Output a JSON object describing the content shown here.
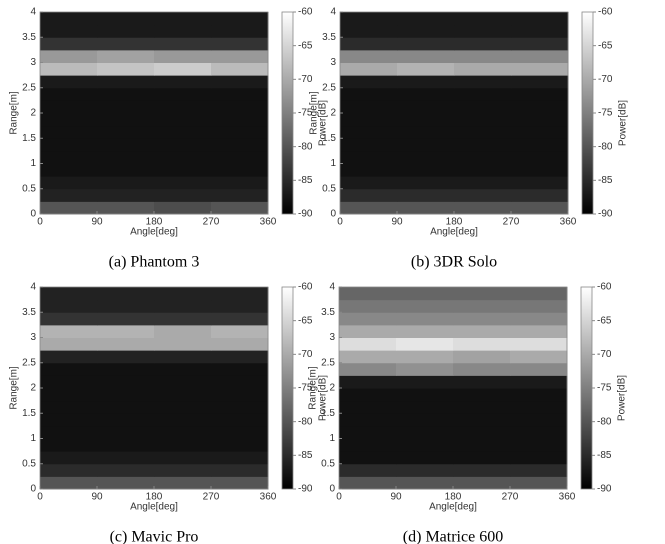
{
  "chart_data": [
    {
      "type": "heatmap",
      "caption": "(a) Phantom 3",
      "xlabel": "Angle[deg]",
      "ylabel": "Range[m]",
      "colorbar_label": "Power[dB]",
      "xlim": [
        0,
        360
      ],
      "ylim": [
        0,
        4
      ],
      "xticks": [
        0,
        90,
        180,
        270,
        360
      ],
      "yticks": [
        0,
        0.5,
        1,
        1.5,
        2,
        2.5,
        3,
        3.5,
        4
      ],
      "zlim": [
        -90,
        -60
      ],
      "zticks": [
        -60,
        -65,
        -70,
        -75,
        -80,
        -85,
        -90
      ],
      "colormap": [
        "#000000",
        "#ffffff"
      ],
      "z": [
        [
          -80,
          -80,
          -81,
          -80
        ],
        [
          -86,
          -86,
          -86,
          -86
        ],
        [
          -87,
          -87,
          -87,
          -87
        ],
        [
          -88,
          -88,
          -88,
          -88
        ],
        [
          -88,
          -88,
          -88,
          -88
        ],
        [
          -88,
          -88,
          -88,
          -88
        ],
        [
          -88,
          -88,
          -88,
          -88
        ],
        [
          -88,
          -88,
          -88,
          -88
        ],
        [
          -88,
          -88,
          -88,
          -88
        ],
        [
          -88,
          -88,
          -88,
          -88
        ],
        [
          -87,
          -87,
          -87,
          -87
        ],
        [
          -68,
          -67,
          -66,
          -68
        ],
        [
          -72,
          -71,
          -72,
          -72
        ],
        [
          -84,
          -84,
          -84,
          -84
        ],
        [
          -87,
          -87,
          -87,
          -87
        ],
        [
          -87,
          -87,
          -87,
          -87
        ]
      ]
    },
    {
      "type": "heatmap",
      "caption": "(b) 3DR Solo",
      "xlabel": "Angle[deg]",
      "ylabel": "Range[m]",
      "colorbar_label": "Power[dB]",
      "xlim": [
        0,
        360
      ],
      "ylim": [
        0,
        4
      ],
      "xticks": [
        0,
        90,
        180,
        270,
        360
      ],
      "yticks": [
        0,
        0.5,
        1,
        1.5,
        2,
        2.5,
        3,
        3.5,
        4
      ],
      "zlim": [
        -90,
        -60
      ],
      "zticks": [
        -60,
        -65,
        -70,
        -75,
        -80,
        -85,
        -90
      ],
      "colormap": [
        "#000000",
        "#ffffff"
      ],
      "z": [
        [
          -80,
          -80,
          -80,
          -80
        ],
        [
          -85,
          -85,
          -85,
          -85
        ],
        [
          -87,
          -87,
          -87,
          -87
        ],
        [
          -88,
          -88,
          -88,
          -88
        ],
        [
          -88,
          -88,
          -88,
          -88
        ],
        [
          -88,
          -88,
          -88,
          -88
        ],
        [
          -88,
          -88,
          -88,
          -88
        ],
        [
          -88,
          -88,
          -88,
          -88
        ],
        [
          -88,
          -88,
          -88,
          -88
        ],
        [
          -88,
          -88,
          -88,
          -88
        ],
        [
          -87,
          -87,
          -87,
          -87
        ],
        [
          -70,
          -69,
          -70,
          -70
        ],
        [
          -74,
          -74,
          -74,
          -74
        ],
        [
          -85,
          -85,
          -85,
          -85
        ],
        [
          -87,
          -87,
          -87,
          -87
        ],
        [
          -87,
          -87,
          -87,
          -87
        ]
      ]
    },
    {
      "type": "heatmap",
      "caption": "(c) Mavic Pro",
      "xlabel": "Angle[deg]",
      "ylabel": "Range[m]",
      "colorbar_label": "Power[dB]",
      "xlim": [
        0,
        360
      ],
      "ylim": [
        0,
        4
      ],
      "xticks": [
        0,
        90,
        180,
        270,
        360
      ],
      "yticks": [
        0,
        0.5,
        1,
        1.5,
        2,
        2.5,
        3,
        3.5,
        4
      ],
      "zlim": [
        -90,
        -60
      ],
      "zticks": [
        -60,
        -65,
        -70,
        -75,
        -80,
        -85,
        -90
      ],
      "colormap": [
        "#000000",
        "#ffffff"
      ],
      "z": [
        [
          -80,
          -80,
          -80,
          -80
        ],
        [
          -85,
          -85,
          -85,
          -85
        ],
        [
          -87,
          -87,
          -87,
          -87
        ],
        [
          -88,
          -88,
          -88,
          -88
        ],
        [
          -88,
          -88,
          -88,
          -88
        ],
        [
          -88,
          -88,
          -88,
          -88
        ],
        [
          -88,
          -88,
          -88,
          -88
        ],
        [
          -88,
          -88,
          -88,
          -88
        ],
        [
          -88,
          -88,
          -88,
          -88
        ],
        [
          -88,
          -88,
          -88,
          -88
        ],
        [
          -86,
          -86,
          -86,
          -86
        ],
        [
          -70,
          -70,
          -70,
          -70
        ],
        [
          -69,
          -69,
          -70,
          -69
        ],
        [
          -84,
          -84,
          -84,
          -84
        ],
        [
          -86,
          -86,
          -86,
          -86
        ],
        [
          -86,
          -86,
          -86,
          -86
        ]
      ]
    },
    {
      "type": "heatmap",
      "caption": "(d) Matrice 600",
      "xlabel": "Angle[deg]",
      "ylabel": "Range[m]",
      "colorbar_label": "Power[dB]",
      "xlim": [
        0,
        360
      ],
      "ylim": [
        0,
        4
      ],
      "xticks": [
        0,
        90,
        180,
        270,
        360
      ],
      "yticks": [
        0,
        0.5,
        1,
        1.5,
        2,
        2.5,
        3,
        3.5,
        4
      ],
      "zlim": [
        -90,
        -60
      ],
      "zticks": [
        -60,
        -65,
        -70,
        -75,
        -80,
        -85,
        -90
      ],
      "colormap": [
        "#000000",
        "#ffffff"
      ],
      "z": [
        [
          -80,
          -80,
          -80,
          -80
        ],
        [
          -85,
          -85,
          -85,
          -85
        ],
        [
          -88,
          -88,
          -88,
          -88
        ],
        [
          -88,
          -88,
          -88,
          -88
        ],
        [
          -88,
          -88,
          -88,
          -88
        ],
        [
          -88,
          -88,
          -88,
          -88
        ],
        [
          -88,
          -88,
          -88,
          -88
        ],
        [
          -88,
          -88,
          -88,
          -88
        ],
        [
          -87,
          -87,
          -87,
          -87
        ],
        [
          -74,
          -73,
          -74,
          -74
        ],
        [
          -70,
          -70,
          -71,
          -70
        ],
        [
          -64,
          -63,
          -64,
          -64
        ],
        [
          -70,
          -70,
          -70,
          -70
        ],
        [
          -74,
          -74,
          -74,
          -74
        ],
        [
          -76,
          -76,
          -76,
          -76
        ],
        [
          -78,
          -78,
          -78,
          -78
        ]
      ]
    }
  ]
}
